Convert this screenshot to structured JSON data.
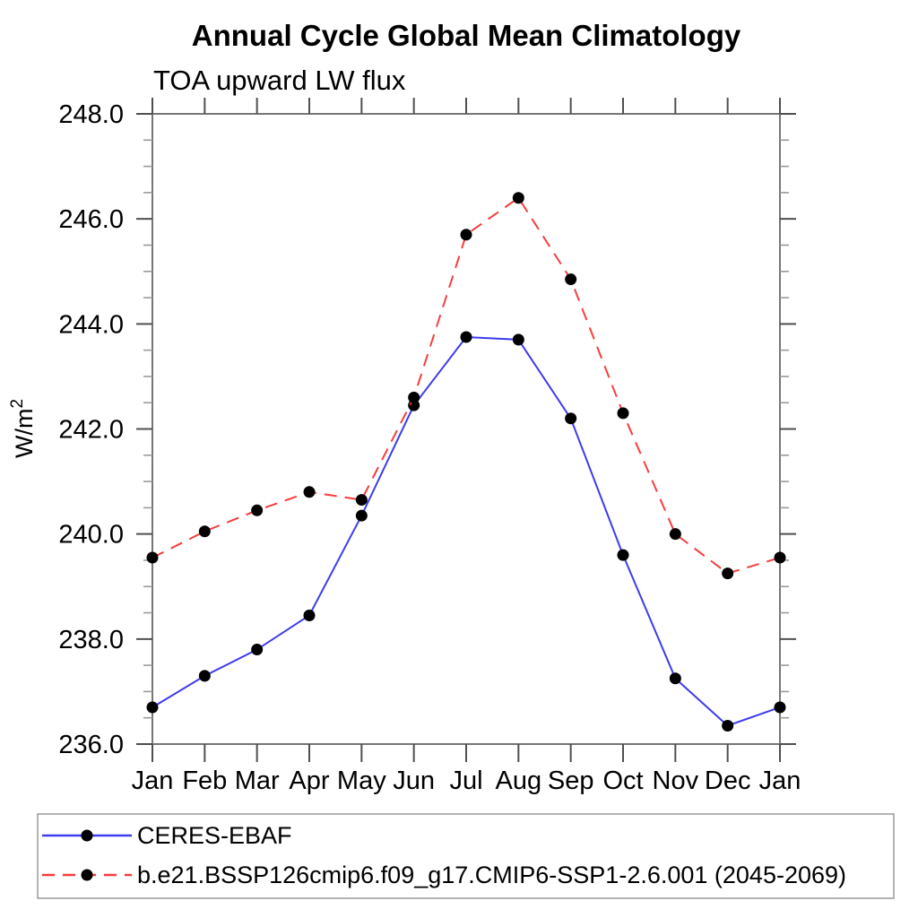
{
  "title": "Annual Cycle Global Mean Climatology",
  "subtitle": "TOA upward LW flux",
  "ylabel": {
    "text": "W/m²",
    "base": "W/m",
    "sup": "2"
  },
  "colors": {
    "ceres_line": "#3c3cee",
    "model_line": "#f83c3c",
    "marker": "#000000",
    "frame": "#767676",
    "tick": "#4f4f4f",
    "tick_minor": "#9a9a9a",
    "legend_border": "#9a9a9a",
    "text": "#000000",
    "background": "#ffffff"
  },
  "chart_data": {
    "type": "line",
    "title": "Annual Cycle Global Mean Climatology",
    "subtitle": "TOA upward LW flux",
    "ylabel": "W/m²",
    "xlabel": "",
    "categories": [
      "Jan",
      "Feb",
      "Mar",
      "Apr",
      "May",
      "Jun",
      "Jul",
      "Aug",
      "Sep",
      "Oct",
      "Nov",
      "Dec",
      "Jan"
    ],
    "ylim": [
      236.0,
      248.0
    ],
    "ytick_values": [
      248.0,
      246.0,
      244.0,
      242.0,
      240.0,
      238.0,
      236.0
    ],
    "ytick_labels": [
      "248.0",
      "246.0",
      "244.0",
      "242.0",
      "240.0",
      "238.0",
      "236.0"
    ],
    "ytick_minor_step": 0.5,
    "grid": false,
    "legend_position": "bottom-left-box",
    "series": [
      {
        "name": "CERES-EBAF",
        "style": "solid",
        "color_key": "ceres_line",
        "marker": "filled-circle",
        "values": [
          236.7,
          237.3,
          237.8,
          238.45,
          240.35,
          242.45,
          243.75,
          243.7,
          242.2,
          239.6,
          237.25,
          236.35,
          236.7
        ]
      },
      {
        "name": "b.e21.BSSP126cmip6.f09_g17.CMIP6-SSP1-2.6.001 (2045-2069)",
        "style": "dashed",
        "color_key": "model_line",
        "marker": "filled-circle",
        "values": [
          239.55,
          240.05,
          240.45,
          240.8,
          240.65,
          242.6,
          245.7,
          246.4,
          244.85,
          242.3,
          240.0,
          239.25,
          239.55
        ]
      }
    ]
  }
}
